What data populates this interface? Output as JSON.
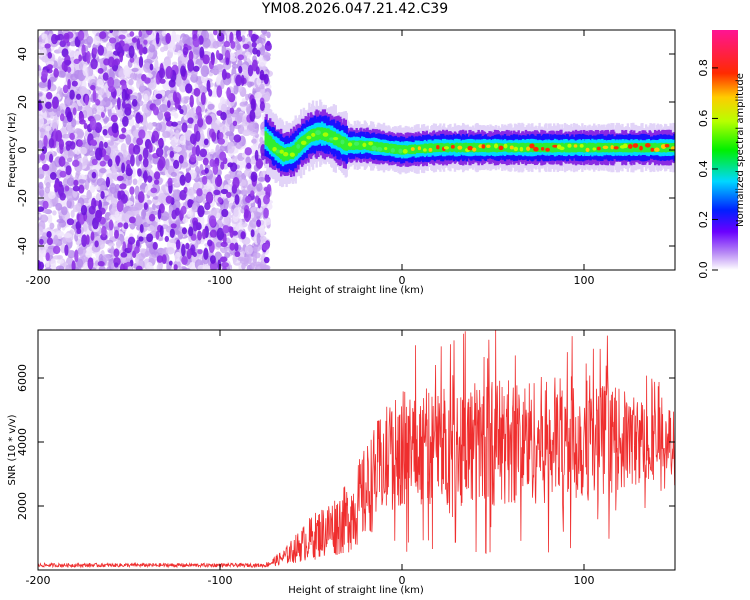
{
  "title": "YM08.2026.047.21.42.C39",
  "colors": {
    "snr_line": "#ef2e2e",
    "scatter_noise": "#8a2be2",
    "axis": "#000000"
  },
  "chart_data": [
    {
      "type": "heatmap",
      "xlabel": "Height of straight line (km)",
      "ylabel": "Frequency (Hz)",
      "xlim": [
        -200,
        150
      ],
      "ylim": [
        -50,
        50
      ],
      "x_ticks": [
        -200,
        -100,
        0,
        100
      ],
      "x_tick_labels": [
        "-200",
        "-100",
        "0",
        "100"
      ],
      "y_ticks": [
        -40,
        -20,
        0,
        20,
        40
      ],
      "y_tick_labels": [
        "-40",
        "-20",
        "0",
        "20",
        "40"
      ],
      "noise_region_x": [
        -200,
        -73
      ],
      "signal_x": [
        -75,
        150
      ],
      "signal_frequency_trace": [
        {
          "x": -75,
          "y": 5
        },
        {
          "x": -70,
          "y": 1
        },
        {
          "x": -65,
          "y": -2
        },
        {
          "x": -60,
          "y": -1
        },
        {
          "x": -55,
          "y": 3
        },
        {
          "x": -50,
          "y": 6
        },
        {
          "x": -45,
          "y": 7
        },
        {
          "x": -40,
          "y": 6
        },
        {
          "x": -35,
          "y": 4
        },
        {
          "x": -30,
          "y": 2
        },
        {
          "x": -20,
          "y": 2
        },
        {
          "x": -10,
          "y": 1
        },
        {
          "x": 0,
          "y": 0
        },
        {
          "x": 20,
          "y": 1
        },
        {
          "x": 50,
          "y": 1
        },
        {
          "x": 100,
          "y": 1
        },
        {
          "x": 150,
          "y": 1
        }
      ],
      "colorbar": {
        "label": "Normalized spectral amplitude",
        "range": [
          0,
          0.95
        ],
        "ticks": [
          0,
          0.2,
          0.4,
          0.6,
          0.8
        ],
        "tick_labels": [
          "0.0",
          "0.2",
          "0.4",
          "0.6",
          "0.8"
        ],
        "colormap": "rainbow (white-violet-blue-cyan-green-yellow-red-magenta)"
      }
    },
    {
      "type": "line",
      "xlabel": "Height of straight line (km)",
      "ylabel": "SNR (10 * v/v)",
      "xlim": [
        -200,
        150
      ],
      "ylim": [
        0,
        7500
      ],
      "x_ticks": [
        -200,
        -100,
        0,
        100
      ],
      "x_tick_labels": [
        "-200",
        "-100",
        "0",
        "100"
      ],
      "y_ticks": [
        2000,
        4000,
        6000
      ],
      "y_tick_labels": [
        "2000",
        "4000",
        "6000"
      ],
      "envelope": [
        {
          "x": -200,
          "mean": 150,
          "amp": 60
        },
        {
          "x": -75,
          "mean": 150,
          "amp": 60
        },
        {
          "x": -65,
          "mean": 400,
          "amp": 250
        },
        {
          "x": -50,
          "mean": 1000,
          "amp": 700
        },
        {
          "x": -30,
          "mean": 1600,
          "amp": 1100
        },
        {
          "x": -20,
          "mean": 2400,
          "amp": 1500
        },
        {
          "x": -10,
          "mean": 3400,
          "amp": 1700
        },
        {
          "x": 0,
          "mean": 3800,
          "amp": 1800
        },
        {
          "x": 50,
          "mean": 4000,
          "amp": 2000
        },
        {
          "x": 100,
          "mean": 4100,
          "amp": 2000
        },
        {
          "x": 150,
          "mean": 4000,
          "amp": 1000
        }
      ],
      "peak_max": 7500
    }
  ]
}
